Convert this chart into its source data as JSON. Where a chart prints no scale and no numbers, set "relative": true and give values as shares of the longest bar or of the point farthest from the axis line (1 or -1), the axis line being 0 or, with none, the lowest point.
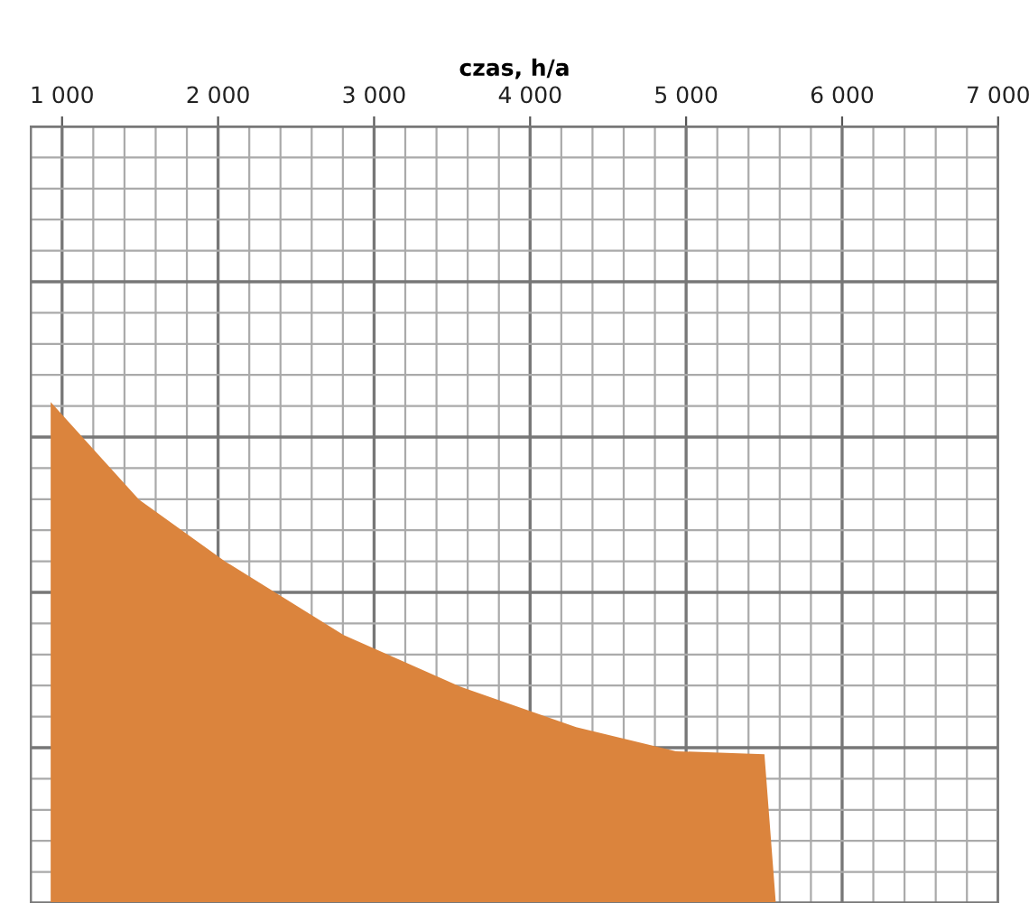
{
  "chart_data": {
    "type": "area",
    "xlabel": "czas, h/a",
    "relative": true,
    "x": [
      927,
      1493,
      2049,
      2805,
      3550,
      4295,
      4935,
      5502,
      5575
    ],
    "series": [
      {
        "type": "area",
        "color": "#db843d",
        "values": [
          1.0,
          0.805,
          0.681,
          0.535,
          0.432,
          0.351,
          0.303,
          0.297,
          0
        ]
      }
    ],
    "xlim": [
      800,
      7000
    ],
    "xticks": [
      {
        "value": 1000,
        "label": "1 000"
      },
      {
        "value": 2000,
        "label": "2 000"
      },
      {
        "value": 3000,
        "label": "3 000"
      },
      {
        "value": 4000,
        "label": "4 000"
      },
      {
        "value": 5000,
        "label": "5 000"
      },
      {
        "value": 6000,
        "label": "6 000"
      },
      {
        "value": 7000,
        "label": "7 000"
      }
    ],
    "grid": true,
    "legend": false
  }
}
